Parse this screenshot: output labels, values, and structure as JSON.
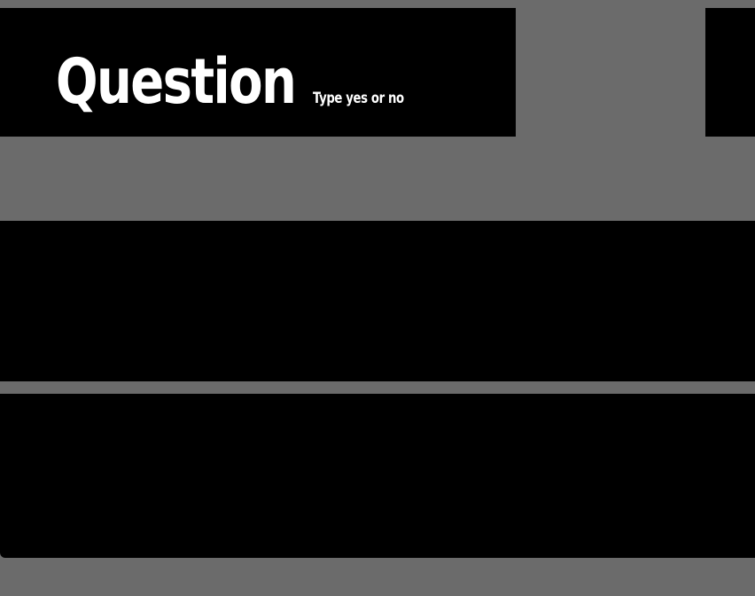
{
  "header": {
    "title": "Question",
    "subtitle": "Type yes or no"
  },
  "answer": {
    "value": "",
    "placeholder": ""
  },
  "colors": {
    "background": "#6b6b6b",
    "panel": "#000000",
    "text": "#ffffff"
  }
}
